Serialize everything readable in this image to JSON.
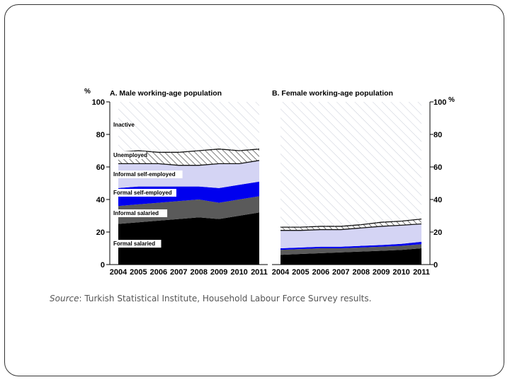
{
  "source": {
    "label": "Source",
    "text": ": Turkish Statistical Institute, Household Labour Force Survey results."
  },
  "axis": {
    "unit": "%",
    "ticks": [
      0,
      20,
      40,
      60,
      80,
      100
    ]
  },
  "colors": {
    "formal_salaried": "#000000",
    "informal_salaried": "#5a5a5a",
    "formal_self_employed": "#0000ee",
    "informal_self_employed": "#d4d4f4",
    "unemployed": "#ffffff",
    "inactive": "#ffffff"
  },
  "chart_data": [
    {
      "type": "area",
      "title": "A. Male working-age population",
      "x": [
        "2004",
        "2005",
        "2006",
        "2007",
        "2008",
        "2009",
        "2010",
        "2011"
      ],
      "ylim": [
        0,
        100
      ],
      "legend_labels": [
        "Inactive",
        "Unemployed",
        "Informal self-employed",
        "Formal self-employed",
        "Informal salaried",
        "Formal salaried"
      ],
      "series": [
        {
          "name": "Formal salaried",
          "values": [
            25,
            26,
            27,
            28,
            29,
            28,
            30,
            32
          ]
        },
        {
          "name": "Informal salaried",
          "values": [
            11,
            11,
            11,
            11,
            11,
            10,
            10,
            10
          ]
        },
        {
          "name": "Formal self-employed",
          "values": [
            11,
            11,
            10,
            9,
            8,
            9,
            9,
            9
          ]
        },
        {
          "name": "Informal self-employed",
          "values": [
            15,
            14,
            14,
            13,
            13,
            15,
            13,
            13
          ]
        },
        {
          "name": "Unemployed",
          "values": [
            7,
            8,
            7,
            8,
            9,
            9,
            8,
            7
          ]
        },
        {
          "name": "Inactive",
          "values": [
            31,
            30,
            31,
            31,
            30,
            29,
            30,
            29
          ]
        }
      ]
    },
    {
      "type": "area",
      "title": "B. Female working-age population",
      "x": [
        "2004",
        "2005",
        "2006",
        "2007",
        "2008",
        "2009",
        "2010",
        "2011"
      ],
      "ylim": [
        0,
        100
      ],
      "legend_labels": [],
      "series": [
        {
          "name": "Formal salaried",
          "values": [
            6,
            6.5,
            7,
            7.5,
            8,
            8.5,
            9,
            10
          ]
        },
        {
          "name": "Informal salaried",
          "values": [
            3,
            3,
            3,
            2.5,
            2.5,
            2.5,
            2.5,
            2.5
          ]
        },
        {
          "name": "Formal self-employed",
          "values": [
            1,
            1,
            1,
            1,
            1,
            1,
            1.2,
            1.5
          ]
        },
        {
          "name": "Informal self-employed",
          "values": [
            11,
            10.5,
            10.5,
            10.5,
            11,
            11.5,
            11.5,
            11
          ]
        },
        {
          "name": "Unemployed",
          "values": [
            2,
            2,
            2,
            2,
            2,
            2.5,
            2.5,
            3
          ]
        },
        {
          "name": "Inactive",
          "values": [
            77,
            77,
            76.5,
            76.5,
            75.5,
            74,
            73.3,
            72
          ]
        }
      ]
    }
  ]
}
